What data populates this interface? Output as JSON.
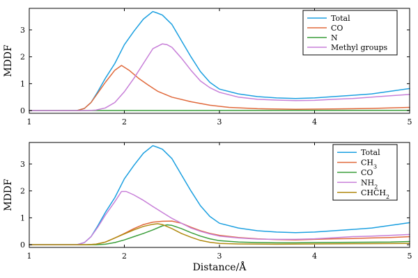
{
  "chart_data": [
    {
      "type": "line",
      "ylabel": "MDDF",
      "xlabel": "",
      "xlim": [
        1,
        5
      ],
      "ylim": [
        -0.1,
        3.8
      ],
      "xticks": [
        1,
        2,
        3,
        4,
        5
      ],
      "yticks": [
        0,
        1,
        2,
        3
      ],
      "legend_position": "top-right",
      "series": [
        {
          "name": "Total",
          "color": "#1a9fe0",
          "points": [
            [
              1.0,
              0.0
            ],
            [
              1.5,
              0.0
            ],
            [
              1.58,
              0.08
            ],
            [
              1.65,
              0.3
            ],
            [
              1.72,
              0.7
            ],
            [
              1.8,
              1.2
            ],
            [
              1.9,
              1.75
            ],
            [
              2.0,
              2.45
            ],
            [
              2.1,
              2.95
            ],
            [
              2.2,
              3.4
            ],
            [
              2.3,
              3.68
            ],
            [
              2.35,
              3.62
            ],
            [
              2.4,
              3.55
            ],
            [
              2.5,
              3.2
            ],
            [
              2.6,
              2.6
            ],
            [
              2.7,
              2.0
            ],
            [
              2.8,
              1.45
            ],
            [
              2.9,
              1.05
            ],
            [
              3.0,
              0.8
            ],
            [
              3.2,
              0.62
            ],
            [
              3.4,
              0.52
            ],
            [
              3.6,
              0.47
            ],
            [
              3.8,
              0.45
            ],
            [
              4.0,
              0.47
            ],
            [
              4.2,
              0.52
            ],
            [
              4.4,
              0.57
            ],
            [
              4.6,
              0.62
            ],
            [
              4.8,
              0.72
            ],
            [
              5.0,
              0.82
            ]
          ]
        },
        {
          "name": "CO",
          "color": "#e0683a",
          "points": [
            [
              1.0,
              0.0
            ],
            [
              1.5,
              0.0
            ],
            [
              1.58,
              0.08
            ],
            [
              1.65,
              0.3
            ],
            [
              1.72,
              0.65
            ],
            [
              1.8,
              1.05
            ],
            [
              1.9,
              1.5
            ],
            [
              1.97,
              1.68
            ],
            [
              2.05,
              1.5
            ],
            [
              2.15,
              1.2
            ],
            [
              2.25,
              0.95
            ],
            [
              2.35,
              0.72
            ],
            [
              2.5,
              0.5
            ],
            [
              2.7,
              0.33
            ],
            [
              2.9,
              0.2
            ],
            [
              3.1,
              0.12
            ],
            [
              3.4,
              0.07
            ],
            [
              3.8,
              0.05
            ],
            [
              4.2,
              0.06
            ],
            [
              4.6,
              0.08
            ],
            [
              5.0,
              0.12
            ]
          ]
        },
        {
          "name": "N",
          "color": "#3a9e3a",
          "points": [
            [
              1.0,
              0.0
            ],
            [
              5.0,
              0.01
            ]
          ]
        },
        {
          "name": "Methyl groups",
          "color": "#c77ed8",
          "points": [
            [
              1.0,
              0.0
            ],
            [
              1.6,
              0.0
            ],
            [
              1.7,
              0.02
            ],
            [
              1.8,
              0.1
            ],
            [
              1.9,
              0.3
            ],
            [
              2.0,
              0.7
            ],
            [
              2.1,
              1.2
            ],
            [
              2.2,
              1.75
            ],
            [
              2.3,
              2.3
            ],
            [
              2.4,
              2.48
            ],
            [
              2.45,
              2.45
            ],
            [
              2.5,
              2.35
            ],
            [
              2.6,
              1.95
            ],
            [
              2.7,
              1.5
            ],
            [
              2.8,
              1.1
            ],
            [
              2.9,
              0.85
            ],
            [
              3.0,
              0.68
            ],
            [
              3.2,
              0.5
            ],
            [
              3.4,
              0.42
            ],
            [
              3.6,
              0.39
            ],
            [
              3.8,
              0.37
            ],
            [
              4.0,
              0.38
            ],
            [
              4.2,
              0.42
            ],
            [
              4.4,
              0.45
            ],
            [
              4.6,
              0.5
            ],
            [
              4.8,
              0.55
            ],
            [
              5.0,
              0.6
            ]
          ]
        }
      ]
    },
    {
      "type": "line",
      "ylabel": "MDDF",
      "xlabel": "Distance/Å",
      "xlim": [
        1,
        5
      ],
      "ylim": [
        -0.1,
        3.8
      ],
      "xticks": [
        1,
        2,
        3,
        4,
        5
      ],
      "yticks": [
        0,
        1,
        2,
        3
      ],
      "legend_position": "top-right",
      "series": [
        {
          "name": "Total",
          "color": "#1a9fe0",
          "points": [
            [
              1.0,
              0.0
            ],
            [
              1.5,
              0.0
            ],
            [
              1.58,
              0.08
            ],
            [
              1.65,
              0.3
            ],
            [
              1.72,
              0.7
            ],
            [
              1.8,
              1.2
            ],
            [
              1.9,
              1.75
            ],
            [
              2.0,
              2.45
            ],
            [
              2.1,
              2.95
            ],
            [
              2.2,
              3.4
            ],
            [
              2.3,
              3.68
            ],
            [
              2.35,
              3.62
            ],
            [
              2.4,
              3.55
            ],
            [
              2.5,
              3.2
            ],
            [
              2.6,
              2.6
            ],
            [
              2.7,
              2.0
            ],
            [
              2.8,
              1.45
            ],
            [
              2.9,
              1.05
            ],
            [
              3.0,
              0.8
            ],
            [
              3.2,
              0.62
            ],
            [
              3.4,
              0.52
            ],
            [
              3.6,
              0.47
            ],
            [
              3.8,
              0.45
            ],
            [
              4.0,
              0.47
            ],
            [
              4.2,
              0.52
            ],
            [
              4.4,
              0.57
            ],
            [
              4.6,
              0.62
            ],
            [
              4.8,
              0.72
            ],
            [
              5.0,
              0.82
            ]
          ]
        },
        {
          "name": "CH",
          "name_sub": "3",
          "color": "#e0683a",
          "points": [
            [
              1.0,
              0.0
            ],
            [
              1.6,
              0.0
            ],
            [
              1.7,
              0.02
            ],
            [
              1.8,
              0.1
            ],
            [
              1.9,
              0.25
            ],
            [
              2.0,
              0.42
            ],
            [
              2.1,
              0.6
            ],
            [
              2.2,
              0.75
            ],
            [
              2.3,
              0.84
            ],
            [
              2.4,
              0.87
            ],
            [
              2.5,
              0.88
            ],
            [
              2.6,
              0.8
            ],
            [
              2.7,
              0.65
            ],
            [
              2.8,
              0.52
            ],
            [
              2.9,
              0.42
            ],
            [
              3.0,
              0.35
            ],
            [
              3.2,
              0.27
            ],
            [
              3.4,
              0.22
            ],
            [
              3.6,
              0.19
            ],
            [
              3.8,
              0.18
            ],
            [
              4.0,
              0.2
            ],
            [
              4.2,
              0.22
            ],
            [
              4.4,
              0.23
            ],
            [
              4.6,
              0.25
            ],
            [
              4.8,
              0.27
            ],
            [
              5.0,
              0.3
            ]
          ]
        },
        {
          "name": "CO",
          "color": "#3a9e3a",
          "points": [
            [
              1.0,
              0.0
            ],
            [
              1.7,
              0.0
            ],
            [
              1.8,
              0.02
            ],
            [
              1.9,
              0.08
            ],
            [
              2.0,
              0.18
            ],
            [
              2.1,
              0.3
            ],
            [
              2.2,
              0.42
            ],
            [
              2.3,
              0.55
            ],
            [
              2.4,
              0.7
            ],
            [
              2.45,
              0.74
            ],
            [
              2.5,
              0.72
            ],
            [
              2.6,
              0.6
            ],
            [
              2.7,
              0.45
            ],
            [
              2.8,
              0.32
            ],
            [
              2.9,
              0.22
            ],
            [
              3.0,
              0.15
            ],
            [
              3.2,
              0.1
            ],
            [
              3.4,
              0.08
            ],
            [
              3.6,
              0.07
            ],
            [
              3.8,
              0.07
            ],
            [
              4.0,
              0.08
            ],
            [
              4.4,
              0.09
            ],
            [
              4.8,
              0.1
            ],
            [
              5.0,
              0.12
            ]
          ]
        },
        {
          "name": "NH",
          "name_sub": "2",
          "color": "#c77ed8",
          "points": [
            [
              1.0,
              0.0
            ],
            [
              1.5,
              0.0
            ],
            [
              1.58,
              0.08
            ],
            [
              1.65,
              0.3
            ],
            [
              1.72,
              0.65
            ],
            [
              1.8,
              1.1
            ],
            [
              1.9,
              1.6
            ],
            [
              1.97,
              1.98
            ],
            [
              2.02,
              1.98
            ],
            [
              2.1,
              1.85
            ],
            [
              2.2,
              1.65
            ],
            [
              2.3,
              1.42
            ],
            [
              2.4,
              1.2
            ],
            [
              2.5,
              0.98
            ],
            [
              2.6,
              0.8
            ],
            [
              2.7,
              0.62
            ],
            [
              2.8,
              0.5
            ],
            [
              2.9,
              0.4
            ],
            [
              3.0,
              0.32
            ],
            [
              3.2,
              0.25
            ],
            [
              3.4,
              0.21
            ],
            [
              3.6,
              0.2
            ],
            [
              3.8,
              0.2
            ],
            [
              4.0,
              0.22
            ],
            [
              4.2,
              0.26
            ],
            [
              4.4,
              0.3
            ],
            [
              4.6,
              0.32
            ],
            [
              4.8,
              0.35
            ],
            [
              5.0,
              0.38
            ]
          ]
        },
        {
          "name": "CHCH",
          "name_sub": "2",
          "color": "#b08a10",
          "points": [
            [
              1.0,
              0.0
            ],
            [
              1.6,
              0.0
            ],
            [
              1.7,
              0.02
            ],
            [
              1.8,
              0.1
            ],
            [
              1.9,
              0.25
            ],
            [
              2.0,
              0.4
            ],
            [
              2.1,
              0.55
            ],
            [
              2.2,
              0.68
            ],
            [
              2.3,
              0.76
            ],
            [
              2.35,
              0.78
            ],
            [
              2.4,
              0.75
            ],
            [
              2.5,
              0.6
            ],
            [
              2.6,
              0.42
            ],
            [
              2.7,
              0.28
            ],
            [
              2.8,
              0.16
            ],
            [
              2.9,
              0.09
            ],
            [
              3.0,
              0.05
            ],
            [
              3.2,
              0.03
            ],
            [
              3.6,
              0.02
            ],
            [
              4.0,
              0.03
            ],
            [
              4.5,
              0.04
            ],
            [
              5.0,
              0.05
            ]
          ]
        }
      ]
    }
  ]
}
